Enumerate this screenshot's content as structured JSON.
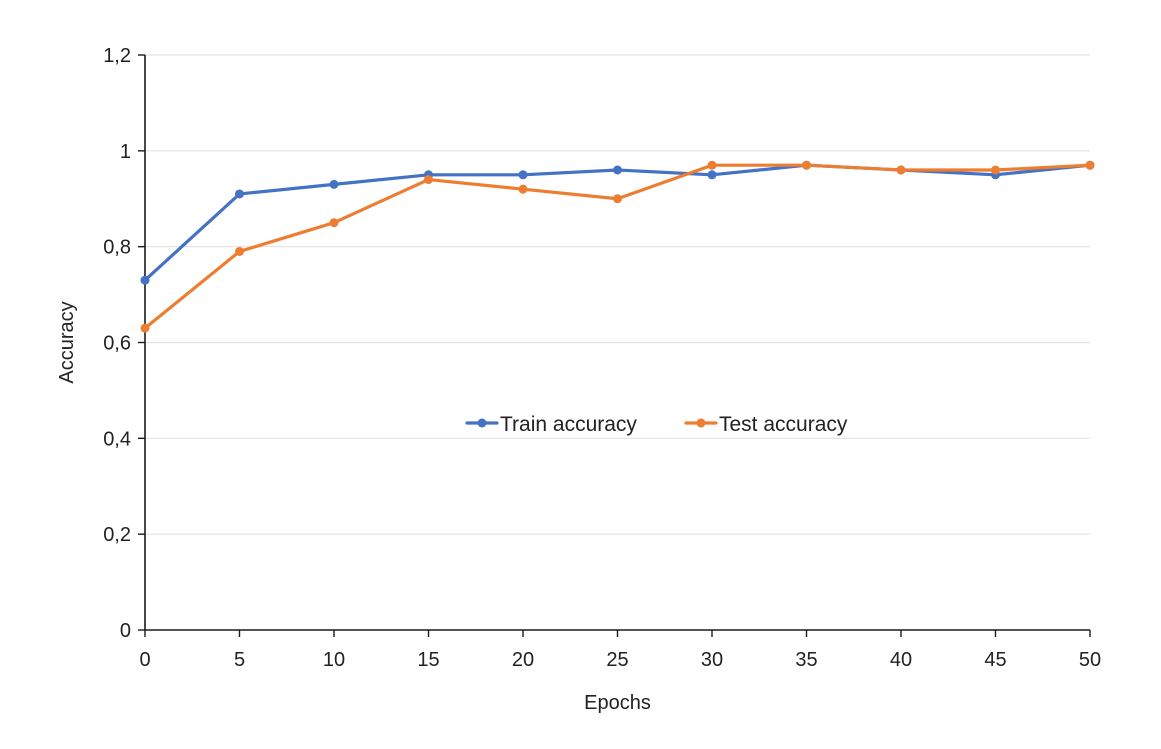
{
  "chart_data": {
    "type": "line",
    "xlabel": "Epochs",
    "ylabel": "Accuracy",
    "x": [
      0,
      5,
      10,
      15,
      20,
      25,
      30,
      35,
      40,
      45,
      50
    ],
    "xlim": [
      0,
      50
    ],
    "ylim": [
      0,
      1.2
    ],
    "x_ticks": [
      "0",
      "5",
      "10",
      "15",
      "20",
      "25",
      "30",
      "35",
      "40",
      "45",
      "50"
    ],
    "y_ticks": [
      {
        "value": 0,
        "label": "0"
      },
      {
        "value": 0.2,
        "label": "0,2"
      },
      {
        "value": 0.4,
        "label": "0,4"
      },
      {
        "value": 0.6,
        "label": "0,6"
      },
      {
        "value": 0.8,
        "label": "0,8"
      },
      {
        "value": 1.0,
        "label": "1"
      },
      {
        "value": 1.2,
        "label": "1,2"
      }
    ],
    "grid": "horizontal",
    "legend_position": "center",
    "series": [
      {
        "name": "Train accuracy",
        "color": "#4472c4",
        "values": [
          0.73,
          0.91,
          0.93,
          0.95,
          0.95,
          0.96,
          0.95,
          0.97,
          0.96,
          0.95,
          0.97
        ]
      },
      {
        "name": "Test accuracy",
        "color": "#ed7d31",
        "values": [
          0.63,
          0.79,
          0.85,
          0.94,
          0.92,
          0.9,
          0.97,
          0.97,
          0.96,
          0.96,
          0.97
        ]
      }
    ]
  }
}
